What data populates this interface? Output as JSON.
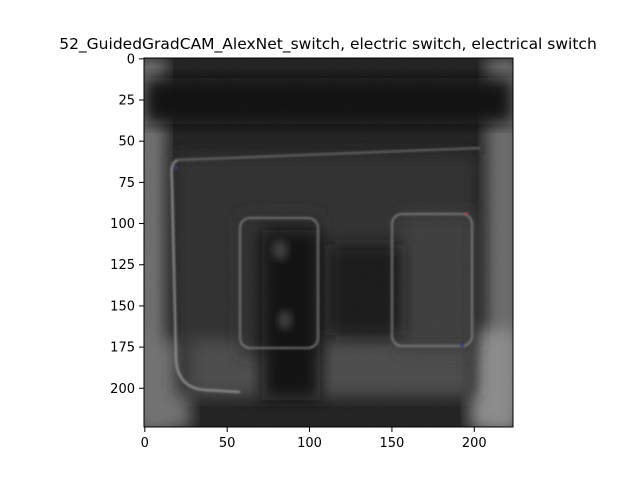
{
  "figure": {
    "title": "52_GuidedGradCAM_AlexNet_switch, electric switch, electrical switch",
    "image_kind": "grayscale saliency map (Guided Grad-CAM) of an electrical switch plate",
    "x_axis": {
      "range": [
        0,
        224
      ],
      "ticks": [
        0,
        50,
        100,
        150,
        200
      ]
    },
    "y_axis": {
      "range": [
        0,
        224
      ],
      "inverted": true,
      "ticks": [
        0,
        25,
        50,
        75,
        100,
        125,
        150,
        175,
        200
      ]
    },
    "colors": {
      "background": "#ffffff",
      "image_base": "#1c1c1c",
      "axis": "#000000"
    }
  }
}
